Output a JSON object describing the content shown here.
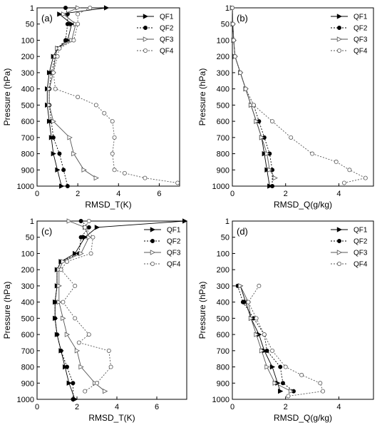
{
  "chart_data": [
    {
      "type": "line",
      "panel_label": "(a)",
      "xlabel": "RMSD_T(K)",
      "ylabel": "Pressure (hPa)",
      "xlim": [
        0,
        7
      ],
      "ylim": [
        1000,
        1
      ],
      "xticks": [
        "0",
        "2",
        "4",
        "6"
      ],
      "yticks": [
        "1",
        "50",
        "100",
        "200",
        "300",
        "400",
        "500",
        "600",
        "700",
        "800",
        "900",
        "1000"
      ],
      "legend_position": "top-right",
      "series": [
        {
          "name": "QF1",
          "style": "solid",
          "marker": "right-triangle-filled",
          "points": [
            [
              3.4,
              1
            ],
            [
              1.1,
              20
            ],
            [
              1.7,
              50
            ],
            [
              1.5,
              100
            ],
            [
              1.0,
              150
            ],
            [
              0.8,
              200
            ],
            [
              0.6,
              300
            ],
            [
              0.5,
              400
            ],
            [
              0.5,
              500
            ],
            [
              0.6,
              600
            ],
            [
              0.7,
              700
            ],
            [
              0.8,
              800
            ],
            [
              1.0,
              900
            ],
            [
              1.2,
              1000
            ]
          ]
        },
        {
          "name": "QF2",
          "style": "dotted",
          "marker": "circle-filled",
          "points": [
            [
              1.4,
              1
            ],
            [
              1.5,
              20
            ],
            [
              1.5,
              50
            ],
            [
              1.4,
              100
            ],
            [
              1.0,
              150
            ],
            [
              0.9,
              200
            ],
            [
              0.7,
              300
            ],
            [
              0.6,
              400
            ],
            [
              0.6,
              500
            ],
            [
              0.7,
              600
            ],
            [
              0.8,
              700
            ],
            [
              1.1,
              800
            ],
            [
              1.3,
              900
            ],
            [
              1.5,
              1000
            ]
          ]
        },
        {
          "name": "QF3",
          "style": "solid",
          "marker": "right-triangle-open",
          "points": [
            [
              2.0,
              1
            ],
            [
              1.3,
              20
            ],
            [
              1.9,
              50
            ],
            [
              1.7,
              100
            ],
            [
              1.0,
              150
            ],
            [
              0.9,
              200
            ],
            [
              0.8,
              300
            ],
            [
              0.6,
              400
            ],
            [
              0.6,
              500
            ],
            [
              0.8,
              600
            ],
            [
              1.6,
              700
            ],
            [
              1.8,
              800
            ],
            [
              2.3,
              900
            ],
            [
              2.9,
              950
            ]
          ]
        },
        {
          "name": "QF4",
          "style": "dotted",
          "marker": "circle-open",
          "points": [
            [
              2.6,
              1
            ],
            [
              2.0,
              20
            ],
            [
              2.0,
              50
            ],
            [
              1.8,
              100
            ],
            [
              1.1,
              150
            ],
            [
              1.0,
              200
            ],
            [
              0.8,
              300
            ],
            [
              0.9,
              400
            ],
            [
              2.0,
              450
            ],
            [
              2.9,
              500
            ],
            [
              3.3,
              550
            ],
            [
              3.7,
              600
            ],
            [
              3.8,
              700
            ],
            [
              3.7,
              800
            ],
            [
              3.8,
              900
            ],
            [
              4.3,
              920
            ],
            [
              5.3,
              950
            ],
            [
              6.9,
              980
            ]
          ]
        }
      ]
    },
    {
      "type": "line",
      "panel_label": "(b)",
      "xlabel": "RMSD_Q(g/kg)",
      "ylabel": "Pressure (hPa)",
      "xlim": [
        0,
        5.3
      ],
      "ylim": [
        1000,
        1
      ],
      "xticks": [
        "0",
        "2",
        "4"
      ],
      "yticks": [
        "1",
        "50",
        "100",
        "200",
        "300",
        "400",
        "500",
        "600",
        "700",
        "800",
        "900",
        "1000"
      ],
      "legend_position": "top-right",
      "series": [
        {
          "name": "QF1",
          "style": "solid",
          "marker": "right-triangle-filled",
          "points": [
            [
              0.0,
              1
            ],
            [
              0.02,
              50
            ],
            [
              0.05,
              100
            ],
            [
              0.1,
              200
            ],
            [
              0.3,
              300
            ],
            [
              0.5,
              400
            ],
            [
              0.7,
              500
            ],
            [
              0.9,
              600
            ],
            [
              1.1,
              700
            ],
            [
              1.2,
              800
            ],
            [
              1.3,
              900
            ],
            [
              1.4,
              1000
            ]
          ]
        },
        {
          "name": "QF2",
          "style": "dotted",
          "marker": "circle-filled",
          "points": [
            [
              0.0,
              1
            ],
            [
              0.02,
              50
            ],
            [
              0.05,
              100
            ],
            [
              0.1,
              200
            ],
            [
              0.3,
              300
            ],
            [
              0.5,
              400
            ],
            [
              0.8,
              500
            ],
            [
              1.0,
              600
            ],
            [
              1.2,
              700
            ],
            [
              1.4,
              800
            ],
            [
              1.5,
              900
            ],
            [
              1.5,
              1000
            ]
          ]
        },
        {
          "name": "QF3",
          "style": "solid",
          "marker": "right-triangle-open",
          "points": [
            [
              0.0,
              1
            ],
            [
              0.02,
              50
            ],
            [
              0.05,
              100
            ],
            [
              0.1,
              200
            ],
            [
              0.3,
              300
            ],
            [
              0.5,
              400
            ],
            [
              0.7,
              500
            ],
            [
              0.9,
              600
            ],
            [
              1.1,
              700
            ],
            [
              1.3,
              800
            ],
            [
              1.4,
              900
            ],
            [
              1.6,
              950
            ]
          ]
        },
        {
          "name": "QF4",
          "style": "dotted",
          "marker": "circle-open",
          "points": [
            [
              0.0,
              1
            ],
            [
              0.02,
              50
            ],
            [
              0.05,
              100
            ],
            [
              0.1,
              200
            ],
            [
              0.3,
              300
            ],
            [
              0.5,
              400
            ],
            [
              0.8,
              500
            ],
            [
              1.5,
              600
            ],
            [
              2.2,
              700
            ],
            [
              3.0,
              800
            ],
            [
              3.9,
              850
            ],
            [
              4.4,
              900
            ],
            [
              5.0,
              950
            ],
            [
              4.2,
              980
            ]
          ]
        }
      ]
    },
    {
      "type": "line",
      "panel_label": "(c)",
      "xlabel": "RMSD_T(K)",
      "ylabel": "Pressure (hPa)",
      "xlim": [
        0,
        7.5
      ],
      "ylim": [
        1000,
        1
      ],
      "xticks": [
        "0",
        "2",
        "4",
        "6"
      ],
      "yticks": [
        "1",
        "50",
        "100",
        "200",
        "300",
        "400",
        "500",
        "600",
        "700",
        "800",
        "900",
        "1000"
      ],
      "legend_position": "top-right",
      "series": [
        {
          "name": "QF1",
          "style": "solid",
          "marker": "right-triangle-filled",
          "points": [
            [
              7.4,
              1
            ],
            [
              3.0,
              20
            ],
            [
              2.4,
              50
            ],
            [
              1.9,
              100
            ],
            [
              1.2,
              150
            ],
            [
              1.0,
              200
            ],
            [
              1.0,
              300
            ],
            [
              0.9,
              400
            ],
            [
              0.9,
              500
            ],
            [
              1.0,
              600
            ],
            [
              1.2,
              700
            ],
            [
              1.4,
              800
            ],
            [
              1.6,
              900
            ],
            [
              1.9,
              1000
            ]
          ]
        },
        {
          "name": "QF2",
          "style": "dotted",
          "marker": "circle-filled",
          "points": [
            [
              2.2,
              1
            ],
            [
              2.6,
              20
            ],
            [
              2.2,
              50
            ],
            [
              2.1,
              100
            ],
            [
              1.2,
              150
            ],
            [
              1.0,
              200
            ],
            [
              1.0,
              300
            ],
            [
              0.9,
              400
            ],
            [
              0.9,
              500
            ],
            [
              1.0,
              600
            ],
            [
              1.2,
              700
            ],
            [
              1.5,
              800
            ],
            [
              1.8,
              900
            ],
            [
              1.8,
              1000
            ]
          ]
        },
        {
          "name": "QF3",
          "style": "solid",
          "marker": "right-triangle-open",
          "points": [
            [
              1.6,
              1
            ],
            [
              2.4,
              20
            ],
            [
              2.6,
              50
            ],
            [
              2.2,
              100
            ],
            [
              1.3,
              150
            ],
            [
              1.1,
              200
            ],
            [
              1.1,
              300
            ],
            [
              1.1,
              400
            ],
            [
              1.3,
              500
            ],
            [
              1.5,
              600
            ],
            [
              2.0,
              700
            ],
            [
              2.2,
              800
            ],
            [
              2.9,
              900
            ],
            [
              3.4,
              950
            ]
          ]
        },
        {
          "name": "QF4",
          "style": "dotted",
          "marker": "circle-open",
          "points": [
            [
              2.6,
              1
            ],
            [
              2.4,
              20
            ],
            [
              2.8,
              50
            ],
            [
              2.7,
              100
            ],
            [
              1.5,
              150
            ],
            [
              1.2,
              200
            ],
            [
              1.9,
              300
            ],
            [
              1.3,
              400
            ],
            [
              1.9,
              500
            ],
            [
              2.6,
              600
            ],
            [
              2.1,
              650
            ],
            [
              3.6,
              700
            ],
            [
              3.7,
              800
            ],
            [
              3.0,
              900
            ],
            [
              2.4,
              950
            ]
          ]
        }
      ]
    },
    {
      "type": "line",
      "panel_label": "(d)",
      "xlabel": "RMSD_Q(g/kg)",
      "ylabel": "Pressure (hPa)",
      "xlim": [
        0,
        5.3
      ],
      "ylim": [
        1000,
        1
      ],
      "xticks": [
        "0",
        "2",
        "4"
      ],
      "yticks": [
        "1",
        "50",
        "100",
        "200",
        "300",
        "400",
        "500",
        "600",
        "700",
        "800",
        "900",
        "1000"
      ],
      "legend_position": "top-right",
      "series": [
        {
          "name": "QF1",
          "style": "solid",
          "marker": "right-triangle-filled",
          "points": [
            [
              0.3,
              300
            ],
            [
              0.5,
              400
            ],
            [
              0.7,
              500
            ],
            [
              1.0,
              600
            ],
            [
              1.2,
              700
            ],
            [
              1.5,
              800
            ],
            [
              1.7,
              900
            ],
            [
              1.8,
              950
            ]
          ]
        },
        {
          "name": "QF2",
          "style": "dotted",
          "marker": "circle-filled",
          "points": [
            [
              0.2,
              300
            ],
            [
              0.4,
              400
            ],
            [
              0.8,
              500
            ],
            [
              1.2,
              600
            ],
            [
              1.3,
              700
            ],
            [
              1.8,
              800
            ],
            [
              1.9,
              900
            ],
            [
              2.3,
              950
            ]
          ]
        },
        {
          "name": "QF3",
          "style": "solid",
          "marker": "right-triangle-open",
          "points": [
            [
              0.3,
              300
            ],
            [
              0.6,
              400
            ],
            [
              0.7,
              500
            ],
            [
              0.9,
              600
            ],
            [
              1.1,
              700
            ],
            [
              1.3,
              800
            ],
            [
              1.6,
              900
            ],
            [
              2.2,
              950
            ]
          ]
        },
        {
          "name": "QF4",
          "style": "dotted",
          "marker": "circle-open",
          "points": [
            [
              1.0,
              300
            ],
            [
              0.6,
              400
            ],
            [
              0.9,
              500
            ],
            [
              1.2,
              600
            ],
            [
              1.5,
              700
            ],
            [
              2.0,
              800
            ],
            [
              2.6,
              850
            ],
            [
              3.3,
              900
            ],
            [
              3.4,
              950
            ],
            [
              2.1,
              980
            ]
          ]
        }
      ]
    }
  ]
}
